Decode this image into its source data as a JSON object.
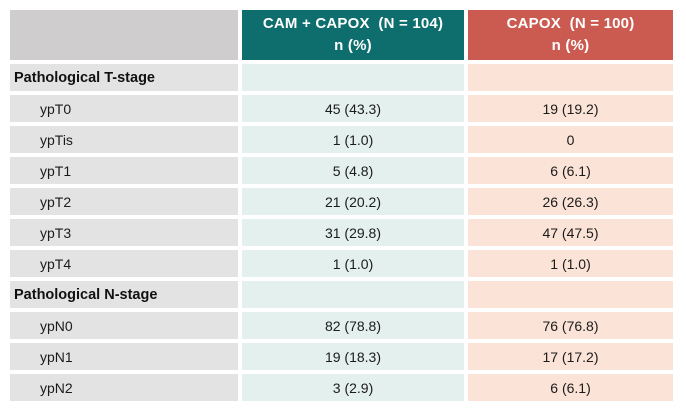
{
  "colors": {
    "header_cam_bg": "#0e6d6d",
    "header_capox_bg": "#cb5b50",
    "header_corner_bg": "#cfcdcd",
    "label_col_bg": "#e3e3e3",
    "cam_col_bg": "#e3f0ee",
    "capox_col_bg": "#fbe3d7",
    "header_text": "#ffffff",
    "body_text": "#1b1b1b"
  },
  "table": {
    "columns": {
      "cam": {
        "title": "CAM + CAPOX  (N = 104)",
        "subtitle": "n (%)"
      },
      "capox": {
        "title": "CAPOX  (N = 100)",
        "subtitle": "n (%)"
      }
    },
    "rows": [
      {
        "type": "section",
        "label": "Pathological T-stage",
        "cam": "",
        "capox": ""
      },
      {
        "type": "data",
        "label": "ypT0",
        "cam": "45 (43.3)",
        "capox": "19 (19.2)"
      },
      {
        "type": "data",
        "label": "ypTis",
        "cam": "1 (1.0)",
        "capox": "0"
      },
      {
        "type": "data",
        "label": "ypT1",
        "cam": "5 (4.8)",
        "capox": "6 (6.1)"
      },
      {
        "type": "data",
        "label": "ypT2",
        "cam": "21 (20.2)",
        "capox": "26 (26.3)"
      },
      {
        "type": "data",
        "label": "ypT3",
        "cam": "31 (29.8)",
        "capox": "47 (47.5)"
      },
      {
        "type": "data",
        "label": "ypT4",
        "cam": "1 (1.0)",
        "capox": "1 (1.0)"
      },
      {
        "type": "section",
        "label": "Pathological N-stage",
        "cam": "",
        "capox": ""
      },
      {
        "type": "data",
        "label": "ypN0",
        "cam": "82 (78.8)",
        "capox": "76 (76.8)"
      },
      {
        "type": "data",
        "label": "ypN1",
        "cam": "19 (18.3)",
        "capox": "17 (17.2)"
      },
      {
        "type": "data",
        "label": "ypN2",
        "cam": "3 (2.9)",
        "capox": "6 (6.1)"
      }
    ]
  }
}
